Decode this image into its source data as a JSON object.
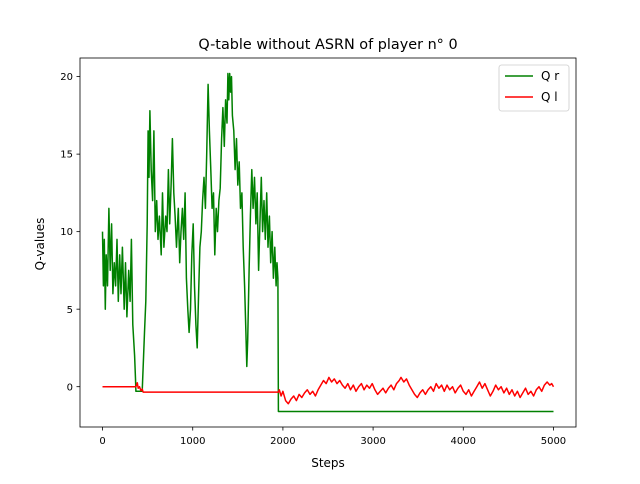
{
  "chart_data": {
    "type": "line",
    "title": "Q-table without ASRN of player n° 0",
    "xlabel": "Steps",
    "ylabel": "Q-values",
    "xlim": [
      -250,
      5250
    ],
    "ylim": [
      -2.6,
      21.2
    ],
    "xticks": [
      0,
      1000,
      2000,
      3000,
      4000,
      5000
    ],
    "xtick_labels": [
      "0",
      "1000",
      "2000",
      "3000",
      "4000",
      "5000"
    ],
    "yticks": [
      0,
      5,
      10,
      15,
      20
    ],
    "ytick_labels": [
      "0",
      "5",
      "10",
      "15",
      "20"
    ],
    "grid": false,
    "legend": {
      "position": "top-right"
    },
    "series": [
      {
        "name": "Q r",
        "color": "#008000",
        "points": [
          [
            0,
            10.0
          ],
          [
            10,
            6.5
          ],
          [
            20,
            9.5
          ],
          [
            30,
            5.0
          ],
          [
            40,
            8.5
          ],
          [
            55,
            6.5
          ],
          [
            70,
            11.5
          ],
          [
            85,
            7.5
          ],
          [
            100,
            10.5
          ],
          [
            115,
            6.0
          ],
          [
            130,
            8.0
          ],
          [
            145,
            6.5
          ],
          [
            160,
            9.5
          ],
          [
            175,
            5.5
          ],
          [
            190,
            8.5
          ],
          [
            205,
            6.0
          ],
          [
            220,
            9.0
          ],
          [
            240,
            5.0
          ],
          [
            255,
            8.0
          ],
          [
            270,
            4.5
          ],
          [
            290,
            7.5
          ],
          [
            305,
            5.5
          ],
          [
            320,
            9.5
          ],
          [
            335,
            4.0
          ],
          [
            345,
            3.0
          ],
          [
            355,
            2.0
          ],
          [
            365,
            0.5
          ],
          [
            370,
            -0.3
          ],
          [
            380,
            -0.3
          ],
          [
            400,
            -0.3
          ],
          [
            440,
            -0.3
          ],
          [
            455,
            2.0
          ],
          [
            465,
            3.5
          ],
          [
            480,
            5.5
          ],
          [
            495,
            10.5
          ],
          [
            505,
            16.5
          ],
          [
            515,
            13.5
          ],
          [
            525,
            17.8
          ],
          [
            540,
            14.0
          ],
          [
            555,
            12.0
          ],
          [
            570,
            16.5
          ],
          [
            585,
            10.0
          ],
          [
            600,
            12.0
          ],
          [
            615,
            9.5
          ],
          [
            630,
            11.0
          ],
          [
            650,
            8.5
          ],
          [
            665,
            12.5
          ],
          [
            680,
            9.0
          ],
          [
            700,
            11.0
          ],
          [
            715,
            10.0
          ],
          [
            730,
            14.0
          ],
          [
            745,
            10.5
          ],
          [
            760,
            13.0
          ],
          [
            775,
            16.0
          ],
          [
            790,
            12.5
          ],
          [
            805,
            11.0
          ],
          [
            820,
            9.0
          ],
          [
            840,
            11.5
          ],
          [
            855,
            8.0
          ],
          [
            870,
            10.0
          ],
          [
            885,
            11.5
          ],
          [
            900,
            9.5
          ],
          [
            915,
            12.5
          ],
          [
            930,
            7.0
          ],
          [
            945,
            5.0
          ],
          [
            960,
            3.5
          ],
          [
            975,
            5.0
          ],
          [
            990,
            8.5
          ],
          [
            1005,
            10.5
          ],
          [
            1020,
            6.5
          ],
          [
            1035,
            4.0
          ],
          [
            1050,
            2.5
          ],
          [
            1065,
            6.0
          ],
          [
            1080,
            9.0
          ],
          [
            1095,
            10.0
          ],
          [
            1110,
            12.0
          ],
          [
            1125,
            13.5
          ],
          [
            1140,
            11.5
          ],
          [
            1155,
            15.0
          ],
          [
            1170,
            19.5
          ],
          [
            1185,
            16.5
          ],
          [
            1200,
            14.0
          ],
          [
            1215,
            11.5
          ],
          [
            1230,
            12.5
          ],
          [
            1245,
            8.5
          ],
          [
            1260,
            11.5
          ],
          [
            1275,
            10.0
          ],
          [
            1290,
            12.0
          ],
          [
            1305,
            12.8
          ],
          [
            1320,
            16.0
          ],
          [
            1335,
            18.0
          ],
          [
            1350,
            15.5
          ],
          [
            1365,
            18.5
          ],
          [
            1380,
            17.0
          ],
          [
            1390,
            20.2
          ],
          [
            1400,
            18.5
          ],
          [
            1410,
            20.2
          ],
          [
            1420,
            19.0
          ],
          [
            1430,
            20.0
          ],
          [
            1440,
            17.5
          ],
          [
            1455,
            16.5
          ],
          [
            1470,
            14.0
          ],
          [
            1485,
            16.0
          ],
          [
            1500,
            13.0
          ],
          [
            1515,
            14.5
          ],
          [
            1530,
            11.5
          ],
          [
            1545,
            12.5
          ],
          [
            1560,
            9.0
          ],
          [
            1575,
            6.5
          ],
          [
            1590,
            3.5
          ],
          [
            1600,
            1.3
          ],
          [
            1610,
            3.0
          ],
          [
            1625,
            7.5
          ],
          [
            1640,
            11.0
          ],
          [
            1655,
            14.0
          ],
          [
            1670,
            11.5
          ],
          [
            1685,
            13.5
          ],
          [
            1700,
            10.5
          ],
          [
            1715,
            12.5
          ],
          [
            1730,
            7.5
          ],
          [
            1745,
            10.5
          ],
          [
            1760,
            13.5
          ],
          [
            1775,
            10.0
          ],
          [
            1790,
            12.0
          ],
          [
            1805,
            9.5
          ],
          [
            1820,
            12.5
          ],
          [
            1835,
            9.0
          ],
          [
            1850,
            11.0
          ],
          [
            1865,
            8.0
          ],
          [
            1880,
            10.0
          ],
          [
            1895,
            7.0
          ],
          [
            1910,
            9.0
          ],
          [
            1925,
            6.5
          ],
          [
            1935,
            8.0
          ],
          [
            1945,
            7.0
          ],
          [
            1950,
            -1.6
          ],
          [
            2500,
            -1.6
          ],
          [
            3000,
            -1.6
          ],
          [
            3500,
            -1.6
          ],
          [
            4000,
            -1.6
          ],
          [
            4500,
            -1.6
          ],
          [
            5000,
            -1.6
          ]
        ]
      },
      {
        "name": "Q l",
        "color": "#ff0000",
        "points": [
          [
            0,
            0.0
          ],
          [
            100,
            0.0
          ],
          [
            200,
            0.0
          ],
          [
            300,
            0.0
          ],
          [
            370,
            0.0
          ],
          [
            385,
            0.25
          ],
          [
            395,
            -0.1
          ],
          [
            410,
            0.0
          ],
          [
            425,
            -0.25
          ],
          [
            440,
            -0.15
          ],
          [
            450,
            -0.35
          ],
          [
            700,
            -0.35
          ],
          [
            1000,
            -0.35
          ],
          [
            1500,
            -0.35
          ],
          [
            1950,
            -0.35
          ],
          [
            1960,
            -0.2
          ],
          [
            1980,
            -0.6
          ],
          [
            2000,
            -0.3
          ],
          [
            2030,
            -0.9
          ],
          [
            2060,
            -1.1
          ],
          [
            2090,
            -0.8
          ],
          [
            2120,
            -0.6
          ],
          [
            2150,
            -0.9
          ],
          [
            2180,
            -0.5
          ],
          [
            2210,
            -0.7
          ],
          [
            2240,
            -0.4
          ],
          [
            2270,
            -0.2
          ],
          [
            2300,
            -0.5
          ],
          [
            2330,
            -0.3
          ],
          [
            2360,
            -0.6
          ],
          [
            2390,
            -0.2
          ],
          [
            2420,
            0.1
          ],
          [
            2450,
            0.4
          ],
          [
            2480,
            0.2
          ],
          [
            2510,
            0.6
          ],
          [
            2540,
            0.3
          ],
          [
            2570,
            0.5
          ],
          [
            2600,
            0.2
          ],
          [
            2630,
            0.4
          ],
          [
            2660,
            0.1
          ],
          [
            2690,
            -0.1
          ],
          [
            2720,
            0.2
          ],
          [
            2750,
            -0.2
          ],
          [
            2780,
            0.1
          ],
          [
            2810,
            -0.3
          ],
          [
            2840,
            0.0
          ],
          [
            2870,
            0.2
          ],
          [
            2900,
            -0.2
          ],
          [
            2930,
            0.1
          ],
          [
            2960,
            -0.1
          ],
          [
            2990,
            0.2
          ],
          [
            3020,
            -0.2
          ],
          [
            3050,
            -0.5
          ],
          [
            3080,
            -0.3
          ],
          [
            3110,
            -0.1
          ],
          [
            3140,
            -0.4
          ],
          [
            3170,
            -0.1
          ],
          [
            3200,
            0.1
          ],
          [
            3230,
            -0.2
          ],
          [
            3260,
            0.2
          ],
          [
            3290,
            0.4
          ],
          [
            3310,
            0.6
          ],
          [
            3340,
            0.3
          ],
          [
            3370,
            0.5
          ],
          [
            3400,
            0.1
          ],
          [
            3430,
            -0.2
          ],
          [
            3460,
            -0.5
          ],
          [
            3490,
            -0.7
          ],
          [
            3520,
            -0.4
          ],
          [
            3550,
            -0.2
          ],
          [
            3580,
            -0.5
          ],
          [
            3610,
            -0.2
          ],
          [
            3640,
            0.0
          ],
          [
            3670,
            -0.3
          ],
          [
            3700,
            0.2
          ],
          [
            3730,
            -0.1
          ],
          [
            3760,
            0.1
          ],
          [
            3790,
            -0.3
          ],
          [
            3820,
            0.1
          ],
          [
            3850,
            -0.2
          ],
          [
            3880,
            0.0
          ],
          [
            3910,
            -0.4
          ],
          [
            3940,
            -0.1
          ],
          [
            3970,
            0.1
          ],
          [
            4000,
            -0.3
          ],
          [
            4030,
            -0.5
          ],
          [
            4060,
            -0.2
          ],
          [
            4090,
            -0.6
          ],
          [
            4120,
            -0.3
          ],
          [
            4150,
            0.0
          ],
          [
            4180,
            0.3
          ],
          [
            4210,
            -0.1
          ],
          [
            4240,
            0.2
          ],
          [
            4270,
            -0.2
          ],
          [
            4300,
            -0.6
          ],
          [
            4330,
            -0.3
          ],
          [
            4360,
            0.1
          ],
          [
            4390,
            -0.2
          ],
          [
            4420,
            0.0
          ],
          [
            4450,
            -0.4
          ],
          [
            4480,
            -0.1
          ],
          [
            4510,
            -0.5
          ],
          [
            4540,
            -0.2
          ],
          [
            4570,
            -0.6
          ],
          [
            4600,
            -0.3
          ],
          [
            4630,
            -0.7
          ],
          [
            4660,
            -0.4
          ],
          [
            4690,
            -0.1
          ],
          [
            4720,
            -0.5
          ],
          [
            4750,
            -0.3
          ],
          [
            4780,
            -0.6
          ],
          [
            4810,
            -0.2
          ],
          [
            4840,
            0.0
          ],
          [
            4870,
            -0.3
          ],
          [
            4900,
            0.1
          ],
          [
            4930,
            0.3
          ],
          [
            4960,
            0.1
          ],
          [
            4980,
            0.2
          ],
          [
            5000,
            0.0
          ]
        ]
      }
    ]
  }
}
